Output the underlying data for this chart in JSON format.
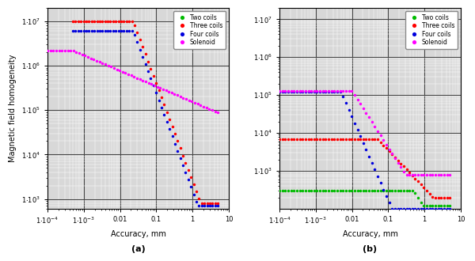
{
  "xlim": [
    0.0001,
    10
  ],
  "ylim": [
    1e-07,
    10000000.0
  ],
  "xlabel": "Accuracy, mm",
  "ylabel": "Magnetic field homogeneity",
  "subtitle_a": "(a)",
  "subtitle_b": "(b)",
  "legend_labels": [
    "Two coils",
    "Three coils",
    "Four coils",
    "Solenoid"
  ],
  "colors": [
    "#00bb00",
    "#ff0000",
    "#0000dd",
    "#ff00ff"
  ],
  "dot_size": 2.5,
  "background": "#d8d8d8"
}
